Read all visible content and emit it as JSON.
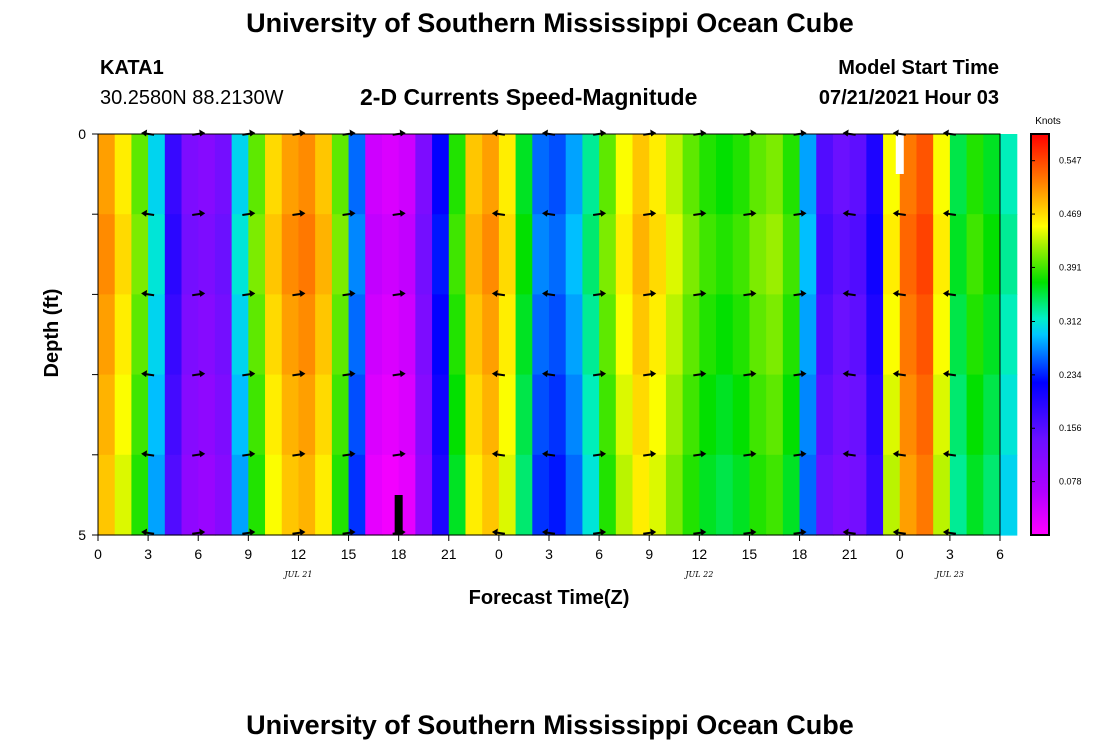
{
  "header": {
    "title": "University of Southern Mississippi Ocean Cube",
    "station_id": "KATA1",
    "station_coords": "30.2580N  88.2130W",
    "plot_subtitle": "2-D Currents Speed-Magnitude",
    "model_start_label": "Model Start Time",
    "model_start_value": "07/21/2021 Hour 03"
  },
  "footer": {
    "title": "University of Southern Mississippi Ocean Cube"
  },
  "colors": {
    "now_marker": "#000000",
    "model_start_marker": "#ffffff",
    "arrow": "#000000"
  },
  "chart_data": {
    "type": "heatmap",
    "title": "2-D Currents Speed-Magnitude",
    "xlabel": "Forecast Time(Z)",
    "ylabel": "Depth (ft)",
    "x_hours_range": [
      0,
      54
    ],
    "x_tick_hours": [
      0,
      3,
      6,
      9,
      12,
      15,
      18,
      21,
      24,
      27,
      30,
      33,
      36,
      39,
      42,
      45,
      48,
      51,
      54
    ],
    "x_tick_labels": [
      "0",
      "3",
      "6",
      "9",
      "12",
      "15",
      "18",
      "21",
      "0",
      "3",
      "6",
      "9",
      "12",
      "15",
      "18",
      "21",
      "0",
      "3",
      "6"
    ],
    "date_labels": [
      {
        "hour": 12,
        "text": "JUL 21"
      },
      {
        "hour": 36,
        "text": "JUL 22"
      },
      {
        "hour": 51,
        "text": "JUL 23"
      }
    ],
    "ylim": [
      0,
      5
    ],
    "y_tick_values": [
      0,
      1,
      2,
      3,
      4,
      5
    ],
    "y_tick_labels": [
      "0",
      "",
      "",
      "",
      "",
      "5"
    ],
    "colorbar": {
      "unit": "Knots",
      "min": 0,
      "max": 0.586,
      "tick_values": [
        0.547,
        0.469,
        0.391,
        0.312,
        0.234,
        0.156,
        0.078
      ],
      "tick_labels": [
        "0.547",
        "0.469",
        "0.391",
        "0.312",
        "0.234",
        "0.156",
        "0.078"
      ]
    },
    "speed_by_hour_knots": [
      0.5,
      0.46,
      0.4,
      0.3,
      0.18,
      0.12,
      0.11,
      0.13,
      0.3,
      0.4,
      0.47,
      0.5,
      0.51,
      0.48,
      0.4,
      0.26,
      0.04,
      0.03,
      0.04,
      0.12,
      0.22,
      0.38,
      0.48,
      0.5,
      0.46,
      0.36,
      0.26,
      0.25,
      0.28,
      0.33,
      0.4,
      0.45,
      0.48,
      0.46,
      0.43,
      0.4,
      0.38,
      0.37,
      0.38,
      0.4,
      0.41,
      0.38,
      0.28,
      0.16,
      0.14,
      0.15,
      0.2,
      0.45,
      0.52,
      0.54,
      0.45,
      0.35,
      0.38,
      0.36,
      0.32
    ],
    "layer_speed_offsets_knots": [
      0.0,
      0.01,
      0.0,
      -0.01,
      -0.02
    ],
    "arrow_hours": [
      3,
      6,
      9,
      12,
      15,
      18,
      24,
      27,
      30,
      33,
      36,
      39,
      42,
      45,
      48,
      51
    ],
    "arrow_directions": [
      "W",
      "E",
      "E",
      "E",
      "E",
      "E",
      "W",
      "W",
      "E",
      "E",
      "E",
      "E",
      "E",
      "W",
      "W",
      "W"
    ],
    "now_marker_hour": 18,
    "model_start_hour": 48
  }
}
